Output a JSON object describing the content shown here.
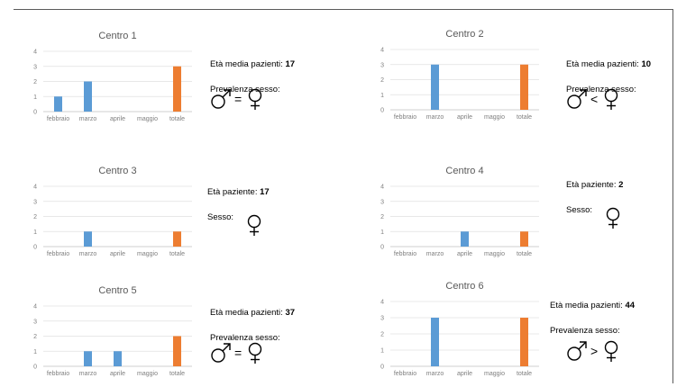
{
  "colors": {
    "month_bar": "#5b9bd5",
    "total_bar": "#ed7d31"
  },
  "chart_data": [
    {
      "type": "bar",
      "title": "Centro 1",
      "categories": [
        "febbraio",
        "marzo",
        "aprile",
        "maggio",
        "totale"
      ],
      "values": [
        1,
        2,
        0,
        0,
        3
      ],
      "ylim": [
        0,
        4
      ],
      "yticks": [
        "0",
        "1",
        "2",
        "3",
        "4"
      ],
      "grid": true,
      "info": {
        "age_label": "Età media pazienti: ",
        "age_value": "17",
        "sex_label": "Prevalenza sesso:",
        "relation": "="
      }
    },
    {
      "type": "bar",
      "title": "Centro 2",
      "categories": [
        "febbraio",
        "marzo",
        "aprile",
        "maggio",
        "totale"
      ],
      "values": [
        0,
        3,
        0,
        0,
        3
      ],
      "ylim": [
        0,
        4
      ],
      "yticks": [
        "0",
        "1",
        "2",
        "3",
        "4"
      ],
      "grid": true,
      "info": {
        "age_label": "Età media pazienti: ",
        "age_value": "10",
        "sex_label": "Prevalenza sesso:",
        "relation": "<"
      }
    },
    {
      "type": "bar",
      "title": "Centro 3",
      "categories": [
        "febbraio",
        "marzo",
        "aprile",
        "maggio",
        "totale"
      ],
      "values": [
        0,
        1,
        0,
        0,
        1
      ],
      "ylim": [
        0,
        4
      ],
      "yticks": [
        "0",
        "1",
        "2",
        "3",
        "4"
      ],
      "grid": true,
      "info": {
        "age_label": "Età paziente: ",
        "age_value": "17",
        "sex_label": "Sesso:",
        "relation": "female"
      }
    },
    {
      "type": "bar",
      "title": "Centro 4",
      "categories": [
        "febbraio",
        "marzo",
        "aprile",
        "maggio",
        "totale"
      ],
      "values": [
        0,
        0,
        1,
        0,
        1
      ],
      "ylim": [
        0,
        4
      ],
      "yticks": [
        "0",
        "1",
        "2",
        "3",
        "4"
      ],
      "grid": true,
      "info": {
        "age_label": "Età paziente: ",
        "age_value": "2",
        "sex_label": "Sesso:",
        "relation": "female"
      }
    },
    {
      "type": "bar",
      "title": "Centro 5",
      "categories": [
        "febbraio",
        "marzo",
        "aprile",
        "maggio",
        "totale"
      ],
      "values": [
        0,
        1,
        1,
        0,
        2
      ],
      "ylim": [
        0,
        4
      ],
      "yticks": [
        "0",
        "1",
        "2",
        "3",
        "4"
      ],
      "grid": true,
      "info": {
        "age_label": "Età media pazienti: ",
        "age_value": "37",
        "sex_label": "Prevalenza sesso:",
        "relation": "="
      }
    },
    {
      "type": "bar",
      "title": "Centro 6",
      "categories": [
        "febbraio",
        "marzo",
        "aprile",
        "maggio",
        "totale"
      ],
      "values": [
        0,
        3,
        0,
        0,
        3
      ],
      "ylim": [
        0,
        4
      ],
      "yticks": [
        "0",
        "1",
        "2",
        "3",
        "4"
      ],
      "grid": true,
      "info": {
        "age_label": "Età media pazienti: ",
        "age_value": "44",
        "sex_label": "Prevalenza sesso:",
        "relation": ">"
      }
    }
  ]
}
